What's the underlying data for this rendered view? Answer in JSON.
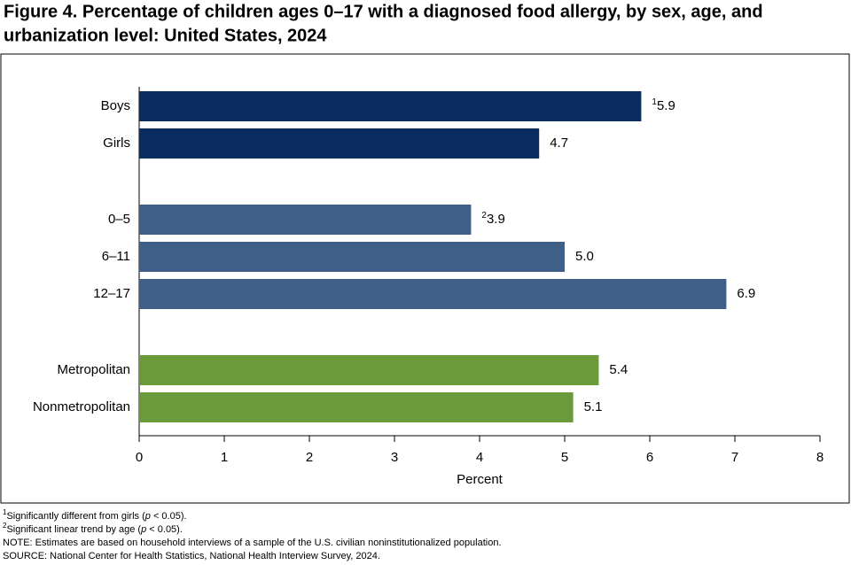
{
  "chart_data": {
    "type": "bar",
    "orientation": "horizontal",
    "title": [
      "Figure 4. Percentage of children ages 0–17 with a diagnosed food allergy, by sex, age, and",
      "urbanization level: United States, 2024"
    ],
    "groups": [
      {
        "color": "#0b2c5e",
        "categories": [
          "Boys",
          "Girls"
        ],
        "values": [
          5.9,
          4.7
        ],
        "value_labels": [
          "5.9",
          "4.7"
        ],
        "value_notes": [
          "1",
          null
        ]
      },
      {
        "color": "#405f88",
        "categories": [
          "0–5",
          "6–11",
          "12–17"
        ],
        "values": [
          3.9,
          5.0,
          6.9
        ],
        "value_labels": [
          "3.9",
          "5.0",
          "6.9"
        ],
        "value_notes": [
          "2",
          null,
          null
        ]
      },
      {
        "color": "#6b9a3a",
        "categories": [
          "Metropolitan",
          "Nonmetropolitan"
        ],
        "values": [
          5.4,
          5.1
        ],
        "value_labels": [
          "5.4",
          "5.1"
        ],
        "value_notes": [
          null,
          null
        ]
      }
    ],
    "xlabel": "Percent",
    "xlim": [
      0,
      8
    ],
    "xticks": [
      0,
      1,
      2,
      3,
      4,
      5,
      6,
      7,
      8
    ],
    "footnotes": [
      {
        "mark": "1",
        "parts": [
          "Significantly different from girls (",
          "p",
          " < 0.05)."
        ]
      },
      {
        "mark": "2",
        "parts": [
          "Significant linear trend by age (",
          "p",
          " < 0.05)."
        ]
      },
      {
        "mark": null,
        "parts": [
          "NOTE: Estimates are based on household interviews of a sample of the U.S. civilian noninstitutionalized population."
        ]
      },
      {
        "mark": null,
        "parts": [
          "SOURCE: National Center for Health Statistics, National Health Interview Survey, 2024."
        ]
      }
    ]
  }
}
